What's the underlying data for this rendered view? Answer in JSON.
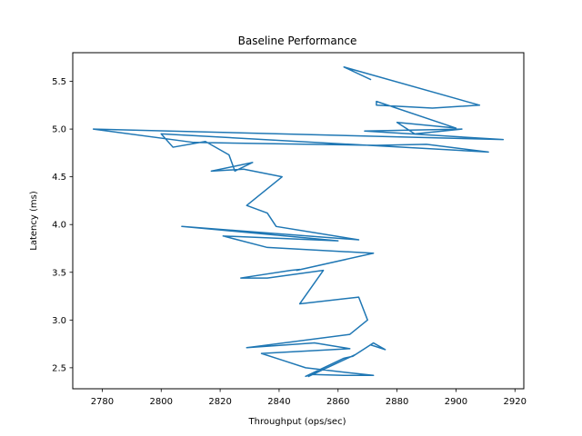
{
  "chart_data": {
    "type": "line",
    "title": "Baseline Performance",
    "xlabel": "Throughput (ops/sec)",
    "ylabel": "Latency (ms)",
    "xlim": [
      2770,
      2923
    ],
    "ylim": [
      2.28,
      5.8
    ],
    "xticks": [
      2780,
      2800,
      2820,
      2840,
      2860,
      2880,
      2900,
      2920
    ],
    "yticks": [
      2.5,
      3.0,
      3.5,
      4.0,
      4.5,
      5.0,
      5.5
    ],
    "grid": false,
    "series": [
      {
        "color": "#1f77b4",
        "x": [
          2871,
          2862,
          2908,
          2892,
          2873,
          2873,
          2900,
          2880,
          2886,
          2902,
          2869,
          2916,
          2777,
          2811,
          2873,
          2890,
          2911,
          2800,
          2804,
          2815,
          2823,
          2825,
          2831,
          2817,
          2828,
          2841,
          2829,
          2836,
          2839,
          2867,
          2807,
          2860,
          2821,
          2836,
          2872,
          2846,
          2847,
          2844,
          2827,
          2836,
          2855,
          2847,
          2867,
          2870,
          2864,
          2829,
          2852,
          2864,
          2834,
          2841,
          2849,
          2863,
          2872,
          2862,
          2851,
          2849,
          2862,
          2865,
          2872,
          2876,
          2871,
          2866,
          2850
        ],
        "y": [
          5.52,
          5.65,
          5.25,
          5.22,
          5.25,
          5.29,
          5.01,
          5.07,
          4.95,
          5.0,
          4.98,
          4.89,
          5.0,
          4.86,
          4.83,
          4.84,
          4.76,
          4.95,
          4.81,
          4.87,
          4.73,
          4.56,
          4.65,
          4.56,
          4.58,
          4.5,
          4.2,
          4.12,
          3.98,
          3.84,
          3.98,
          3.83,
          3.88,
          3.76,
          3.7,
          3.52,
          3.53,
          3.52,
          3.44,
          3.44,
          3.52,
          3.17,
          3.24,
          3.0,
          2.85,
          2.71,
          2.76,
          2.7,
          2.65,
          2.58,
          2.5,
          2.45,
          2.42,
          2.42,
          2.43,
          2.41,
          2.6,
          2.62,
          2.76,
          2.69,
          2.74,
          2.64,
          2.41
        ]
      }
    ]
  }
}
